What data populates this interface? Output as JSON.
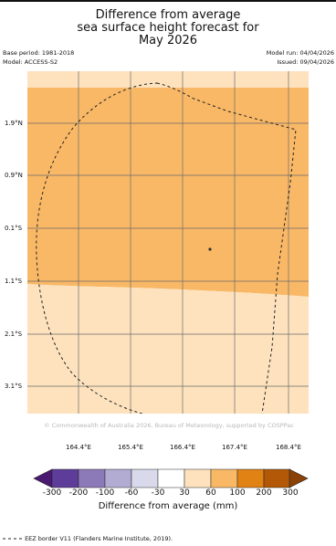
{
  "title": {
    "line1": "Difference from average",
    "line2": "sea surface height forecast for",
    "line3": "May 2026"
  },
  "meta": {
    "base_period": "Base period: 1981-2018",
    "model": "Model: ACCESS-S2",
    "model_run": "Model run: 04/04/2026",
    "issued": "Issued: 09/04/2026"
  },
  "map": {
    "lat_labels": [
      "1.9°N",
      "0.9°N",
      "0.1°S",
      "1.1°S",
      "2.1°S",
      "3.1°S"
    ],
    "lon_labels": [
      "164.4°E",
      "165.4°E",
      "166.4°E",
      "167.4°E",
      "168.4°E"
    ],
    "copyright": "© Commonwealth of Australia 2026, Bureau of Meteorology, supported by COSPPac",
    "field_bands": [
      {
        "range": "30 to 60",
        "color": "#fde2bd"
      },
      {
        "range": "60 to 100",
        "color": "#f9b866"
      },
      {
        "range": "30 to 60",
        "color": "#fde2bd"
      }
    ],
    "eez_outline_color": "#222222",
    "grid_color": "#6b6b6b"
  },
  "colorbar": {
    "ticks": [
      "-300",
      "-200",
      "-100",
      "-60",
      "-30",
      "30",
      "60",
      "100",
      "200",
      "300"
    ],
    "colors": [
      "#4a1a72",
      "#5e3c99",
      "#8c7ab8",
      "#b2abd2",
      "#d8daeb",
      "#ffffff",
      "#fde2bd",
      "#f9b866",
      "#e08214",
      "#b35806",
      "#8a4206"
    ],
    "label": "Difference from average (mm)"
  },
  "footer": {
    "eez_note": "EEZ border V11 (Flanders Marine Institute, 2019)."
  }
}
